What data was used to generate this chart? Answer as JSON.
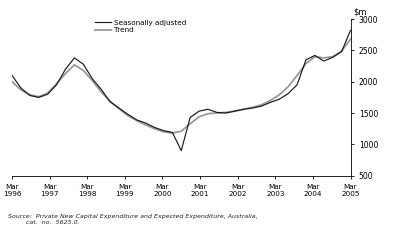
{
  "source_line1": "Source:  Private New Capital Expenditure and Expected Expenditure, Australia,",
  "source_line2": "         cat.  no.  5625.0.",
  "ylim": [
    500,
    3000
  ],
  "yticks": [
    500,
    1000,
    1500,
    2000,
    2500,
    3000
  ],
  "x_labels": [
    "Mar\n1996",
    "Mar\n1997",
    "Mar\n1998",
    "Mar\n1999",
    "Mar\n2000",
    "Mar\n2001",
    "Mar\n2002",
    "Mar\n2003",
    "Mar\n2004",
    "Mar\n2005"
  ],
  "seasonally_adjusted": [
    2100,
    1900,
    1780,
    1750,
    1800,
    1950,
    2200,
    2380,
    2280,
    2050,
    1880,
    1680,
    1580,
    1480,
    1390,
    1340,
    1270,
    1220,
    1190,
    900,
    1430,
    1530,
    1560,
    1510,
    1500,
    1530,
    1560,
    1580,
    1610,
    1670,
    1720,
    1810,
    1950,
    2350,
    2420,
    2330,
    2390,
    2480,
    2820
  ],
  "trend": [
    2000,
    1870,
    1790,
    1760,
    1820,
    1970,
    2130,
    2270,
    2180,
    2020,
    1840,
    1690,
    1570,
    1460,
    1380,
    1310,
    1250,
    1200,
    1180,
    1210,
    1330,
    1440,
    1490,
    1500,
    1510,
    1530,
    1560,
    1590,
    1630,
    1700,
    1790,
    1920,
    2100,
    2290,
    2400,
    2380,
    2400,
    2490,
    2680
  ],
  "sa_color": "#1a1a1a",
  "trend_color": "#999999",
  "legend_labels": [
    "Seasonally adjusted",
    "Trend"
  ],
  "background_color": "#ffffff"
}
